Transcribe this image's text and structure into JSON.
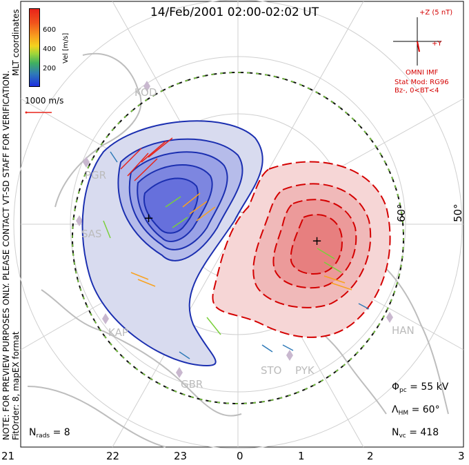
{
  "title": "14/Feb/2001 02:00-02:02 UT",
  "legend": {
    "axis_label": "Vel [m/s]",
    "ticks": [
      "600",
      "400",
      "200"
    ],
    "scale_label": "1000 m/s"
  },
  "side_label_left": "NOTE: FOR PREVIEW PURPOSES ONLY. PLEASE CONTACT VT-SD STAFF FOR VERIFICATION.",
  "side_label_fit": "FitOrder: 8, mapEX format",
  "coordinate_label": "MLT coordinates",
  "imf": {
    "z_label": "+Z (5 nT)",
    "y_label": "+Y",
    "source": "OMNI IMF",
    "model": "Stat Mod: RG96",
    "condition": "Bz-, 0<BT<4"
  },
  "latitude_labels": [
    "60°",
    "50°"
  ],
  "stations": [
    "KOD",
    "PGR",
    "SAS",
    "KAP",
    "GBR",
    "STO",
    "PYK",
    "HAN"
  ],
  "mlt_labels": [
    "21",
    "22",
    "23",
    "0",
    "1",
    "2",
    "3"
  ],
  "stats": {
    "phi_symbol": "Φ",
    "phi_sub": "pc",
    "phi_value": "= 55 kV",
    "lambda_symbol": "Λ",
    "lambda_sub": "HM",
    "lambda_value": "= 60°",
    "nvc_symbol": "N",
    "nvc_sub": "vc",
    "nvc_value": "= 418",
    "nrads_symbol": "N",
    "nrads_sub": "rads",
    "nrads_value": "= 8"
  },
  "colors": {
    "positive_cell": "#d40000",
    "negative_cell": "#1b2fb0",
    "boundary": "#111111",
    "grid": "#cccccc",
    "land": "#b9b9b9"
  }
}
